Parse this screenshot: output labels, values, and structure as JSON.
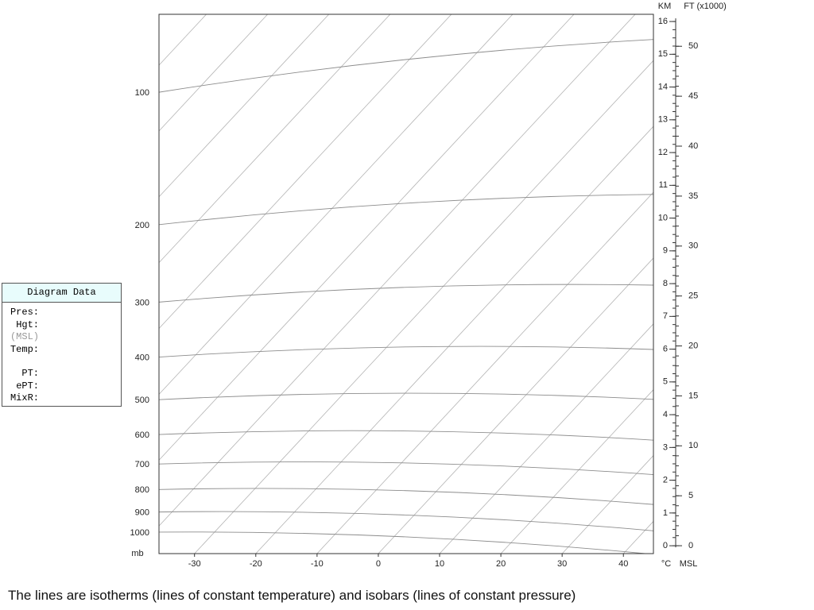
{
  "chart_data": {
    "type": "skew-t",
    "xlabel": "°C",
    "ylabel": "mb",
    "y2label": "KM",
    "y3label": "FT (x1000)",
    "height_label": "MSL",
    "xlim": [
      -35.8,
      44.9
    ],
    "xticks": [
      -30,
      -20,
      -10,
      0,
      10,
      20,
      30,
      40
    ],
    "ylim": [
      1119,
      66.5
    ],
    "yticks": [
      100,
      200,
      300,
      400,
      500,
      600,
      700,
      800,
      900,
      1000
    ],
    "log_y": true,
    "y2lim": [
      -0.24,
      16.22
    ],
    "y2ticks": [
      0,
      1,
      2,
      3,
      4,
      5,
      6,
      7,
      8,
      9,
      10,
      11,
      12,
      13,
      14,
      15,
      16
    ],
    "y2_minor_step": 0.25,
    "y3lim": [
      -0.79,
      53.2
    ],
    "y3ticks": [
      0,
      5,
      10,
      15,
      20,
      25,
      30,
      35,
      40,
      45,
      50
    ],
    "y3_minor_step": 1,
    "isotherm_step": 10,
    "isotherm_color": "#b4b4b4",
    "isobar_color": "#8c8c8c"
  },
  "caption": "The lines are isotherms (lines of constant temperature) and isobars (lines of constant pressure)",
  "panel": {
    "title": "Diagram Data",
    "fields": [
      "Pres:",
      "Hgt:",
      "(MSL)",
      "Temp:",
      "PT:",
      "ePT:",
      "MixR:"
    ]
  }
}
